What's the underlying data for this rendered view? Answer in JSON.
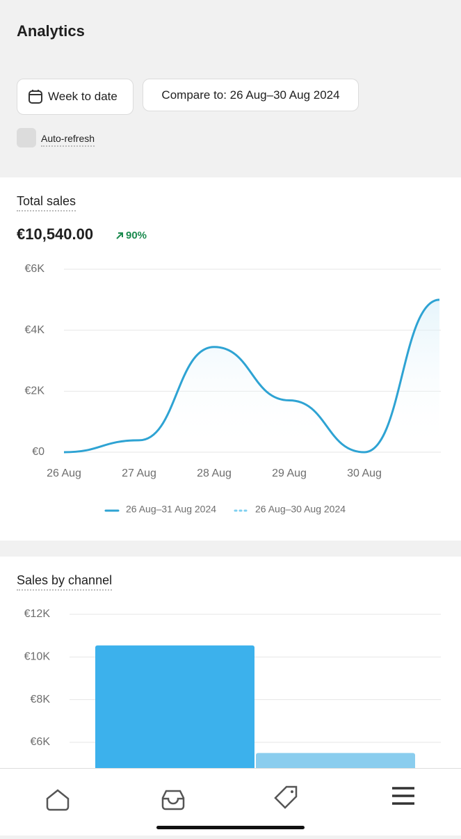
{
  "header": {
    "title": "Analytics"
  },
  "filters": {
    "date_range": "Week to date",
    "compare": "Compare to: 26 Aug–30 Aug 2024",
    "auto_refresh": "Auto-refresh"
  },
  "total_sales": {
    "title": "Total sales",
    "value": "€10,540.00",
    "change": "90%",
    "chart": {
      "type": "line",
      "categories": [
        "26 Aug",
        "27 Aug",
        "28 Aug",
        "29 Aug",
        "30 Aug",
        null
      ],
      "series": [
        {
          "name": "26 Aug–31 Aug 2024",
          "color": "#2ea3d3",
          "values": [
            0,
            390,
            3450,
            1700,
            0,
            5000
          ]
        },
        {
          "name": "26 Aug–30 Aug 2024",
          "color": "#7fd0f0",
          "values": [
            null,
            null,
            null,
            null,
            null,
            null
          ]
        }
      ],
      "ylim": [
        0,
        6000
      ],
      "yticks": [
        {
          "value": 0,
          "label": "€0"
        },
        {
          "value": 2000,
          "label": "€2K"
        },
        {
          "value": 4000,
          "label": "€4K"
        },
        {
          "value": 6000,
          "label": "€6K"
        }
      ],
      "grid": true
    }
  },
  "sales_by_channel": {
    "title": "Sales by channel",
    "chart": {
      "type": "bar",
      "values": [
        10540,
        5500
      ],
      "colors": [
        "#3cb1ec",
        "#8acdee"
      ],
      "ylim": [
        0,
        12000
      ],
      "yticks": [
        {
          "value": 6000,
          "label": "€6K"
        },
        {
          "value": 8000,
          "label": "€8K"
        },
        {
          "value": 10000,
          "label": "€10K"
        },
        {
          "value": 12000,
          "label": "€12K"
        }
      ],
      "grid": true
    }
  }
}
